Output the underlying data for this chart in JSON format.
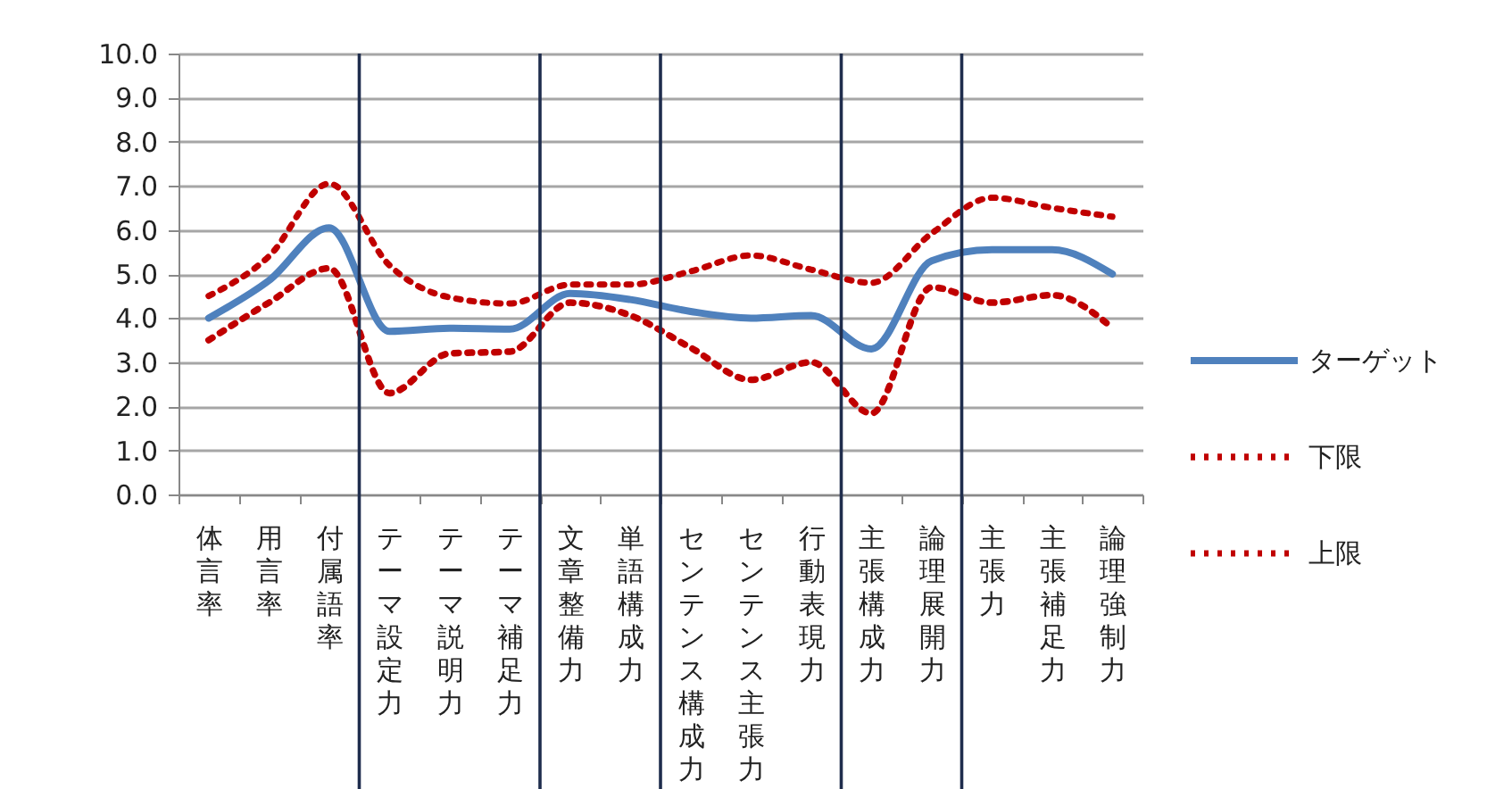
{
  "chart_data": {
    "type": "line",
    "categories": [
      "体言率",
      "用言率",
      "付属語率",
      "テーマ設定力",
      "テーマ説明力",
      "テーマ補足力",
      "文章整備力",
      "単語構成力",
      "センテンス構成力",
      "センテンス主張力",
      "行動表現力",
      "主張構成力",
      "論理展開力",
      "主張力",
      "主張補足力",
      "論理強制力"
    ],
    "series": [
      {
        "name": "ターゲット",
        "color": "#4f81bd",
        "line_style": "solid",
        "values": [
          4.0,
          4.85,
          6.05,
          3.7,
          3.77,
          3.75,
          4.56,
          4.42,
          4.15,
          4.0,
          4.06,
          3.3,
          5.3,
          5.55,
          5.55,
          5.0
        ]
      },
      {
        "name": "下限",
        "color": "#c00000",
        "line_style": "dotted",
        "values": [
          3.5,
          4.35,
          5.13,
          2.3,
          3.2,
          3.24,
          4.35,
          4.06,
          3.33,
          2.6,
          3.0,
          1.84,
          4.7,
          4.35,
          4.52,
          3.78
        ]
      },
      {
        "name": "上限",
        "color": "#c00000",
        "line_style": "dotted",
        "values": [
          4.5,
          5.4,
          7.05,
          5.2,
          4.47,
          4.33,
          4.76,
          4.76,
          5.06,
          5.42,
          5.1,
          4.8,
          5.92,
          6.73,
          6.5,
          6.3
        ]
      }
    ],
    "ylim": [
      0,
      10
    ],
    "yticks": [
      {
        "value": 0,
        "label": "0.0"
      },
      {
        "value": 1,
        "label": "1.0"
      },
      {
        "value": 2,
        "label": "2.0"
      },
      {
        "value": 3,
        "label": "3.0"
      },
      {
        "value": 4,
        "label": "4.0"
      },
      {
        "value": 5,
        "label": "5.0"
      },
      {
        "value": 6,
        "label": "6.0"
      },
      {
        "value": 7,
        "label": "7.0"
      },
      {
        "value": 8,
        "label": "8.0"
      },
      {
        "value": 9,
        "label": "9.0"
      },
      {
        "value": 10,
        "label": "10.0"
      }
    ],
    "grid": "y",
    "legend": "right"
  }
}
